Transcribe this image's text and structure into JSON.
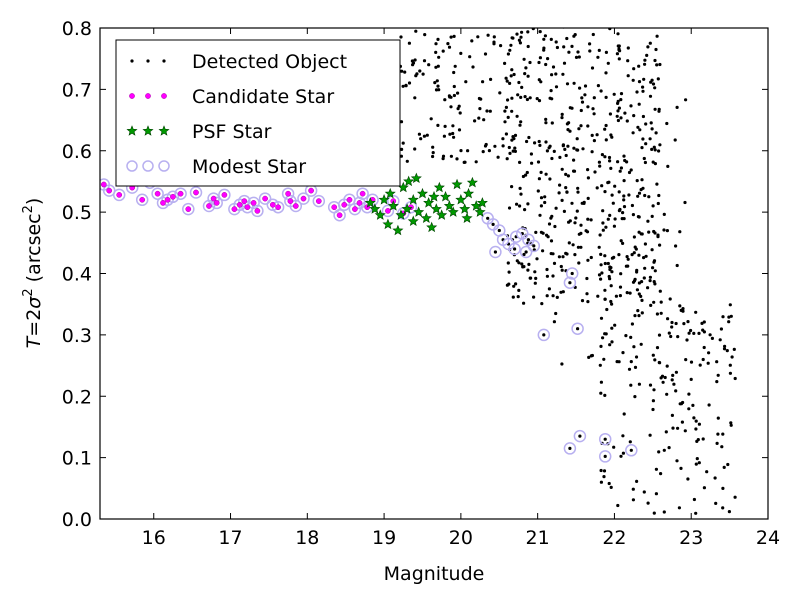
{
  "chart_data": {
    "type": "scatter",
    "title": "",
    "xlabel": "Magnitude",
    "ylabel": "T = 2σ² (arcsec²)",
    "xlim": [
      15.3,
      24
    ],
    "ylim": [
      0.0,
      0.8
    ],
    "x_ticks": [
      "16",
      "17",
      "18",
      "19",
      "20",
      "21",
      "22",
      "23",
      "24"
    ],
    "y_ticks": [
      "0.0",
      "0.1",
      "0.2",
      "0.3",
      "0.4",
      "0.5",
      "0.6",
      "0.7",
      "0.8"
    ],
    "grid": false,
    "legend_position": "top-left",
    "legend": [
      {
        "label": "Detected Object",
        "marker": "dot",
        "color": "#000000"
      },
      {
        "label": "Candidate Star",
        "marker": "small-circle",
        "color": "#ff00ff"
      },
      {
        "label": "PSF Star",
        "marker": "star",
        "color": "#008000"
      },
      {
        "label": "Modest Star",
        "marker": "open-circle",
        "color": "#b8b0f0"
      }
    ],
    "series": [
      {
        "name": "Modest Star",
        "points": [
          [
            15.35,
            0.545
          ],
          [
            15.42,
            0.535
          ],
          [
            15.55,
            0.528
          ],
          [
            15.72,
            0.54
          ],
          [
            15.85,
            0.52
          ],
          [
            15.95,
            0.548
          ],
          [
            16.05,
            0.53
          ],
          [
            16.12,
            0.515
          ],
          [
            16.18,
            0.52
          ],
          [
            16.25,
            0.525
          ],
          [
            16.35,
            0.53
          ],
          [
            16.45,
            0.505
          ],
          [
            16.55,
            0.532
          ],
          [
            16.72,
            0.51
          ],
          [
            16.82,
            0.515
          ],
          [
            16.78,
            0.522
          ],
          [
            16.92,
            0.528
          ],
          [
            17.05,
            0.505
          ],
          [
            17.12,
            0.512
          ],
          [
            17.18,
            0.518
          ],
          [
            17.22,
            0.508
          ],
          [
            17.3,
            0.515
          ],
          [
            17.35,
            0.502
          ],
          [
            17.45,
            0.522
          ],
          [
            17.55,
            0.512
          ],
          [
            17.62,
            0.508
          ],
          [
            17.75,
            0.53
          ],
          [
            17.78,
            0.518
          ],
          [
            17.85,
            0.51
          ],
          [
            17.95,
            0.522
          ],
          [
            18.05,
            0.535
          ],
          [
            18.15,
            0.518
          ],
          [
            18.35,
            0.508
          ],
          [
            18.42,
            0.495
          ],
          [
            18.48,
            0.512
          ],
          [
            18.55,
            0.52
          ],
          [
            18.62,
            0.505
          ],
          [
            18.68,
            0.515
          ],
          [
            18.72,
            0.53
          ],
          [
            18.78,
            0.508
          ],
          [
            18.85,
            0.52
          ],
          [
            19.05,
            0.502
          ],
          [
            19.12,
            0.518
          ],
          [
            19.25,
            0.498
          ],
          [
            19.35,
            0.508
          ],
          [
            20.35,
            0.49
          ],
          [
            20.42,
            0.48
          ],
          [
            20.5,
            0.47
          ],
          [
            20.55,
            0.455
          ],
          [
            20.62,
            0.448
          ],
          [
            20.7,
            0.44
          ],
          [
            20.72,
            0.46
          ],
          [
            20.8,
            0.465
          ],
          [
            20.88,
            0.455
          ],
          [
            20.95,
            0.445
          ],
          [
            20.45,
            0.435
          ],
          [
            20.85,
            0.435
          ],
          [
            21.45,
            0.4
          ],
          [
            21.42,
            0.385
          ],
          [
            21.52,
            0.31
          ],
          [
            21.08,
            0.3
          ],
          [
            21.55,
            0.135
          ],
          [
            21.42,
            0.115
          ],
          [
            21.88,
            0.13
          ],
          [
            21.88,
            0.102
          ],
          [
            22.22,
            0.112
          ]
        ]
      },
      {
        "name": "Candidate Star",
        "points": [
          [
            15.35,
            0.545
          ],
          [
            15.42,
            0.535
          ],
          [
            15.55,
            0.528
          ],
          [
            15.72,
            0.54
          ],
          [
            15.85,
            0.52
          ],
          [
            15.95,
            0.548
          ],
          [
            16.05,
            0.53
          ],
          [
            16.12,
            0.515
          ],
          [
            16.18,
            0.52
          ],
          [
            16.25,
            0.525
          ],
          [
            16.35,
            0.53
          ],
          [
            16.45,
            0.505
          ],
          [
            16.55,
            0.532
          ],
          [
            16.72,
            0.51
          ],
          [
            16.82,
            0.515
          ],
          [
            16.78,
            0.522
          ],
          [
            16.92,
            0.528
          ],
          [
            17.05,
            0.505
          ],
          [
            17.12,
            0.512
          ],
          [
            17.18,
            0.518
          ],
          [
            17.22,
            0.508
          ],
          [
            17.3,
            0.515
          ],
          [
            17.35,
            0.502
          ],
          [
            17.45,
            0.522
          ],
          [
            17.55,
            0.512
          ],
          [
            17.62,
            0.508
          ],
          [
            17.75,
            0.53
          ],
          [
            17.78,
            0.518
          ],
          [
            17.85,
            0.51
          ],
          [
            17.95,
            0.522
          ],
          [
            18.05,
            0.535
          ],
          [
            18.15,
            0.518
          ],
          [
            18.35,
            0.508
          ],
          [
            18.42,
            0.495
          ],
          [
            18.48,
            0.512
          ],
          [
            18.55,
            0.52
          ],
          [
            18.62,
            0.505
          ],
          [
            18.68,
            0.515
          ],
          [
            18.72,
            0.53
          ],
          [
            18.78,
            0.508
          ],
          [
            18.85,
            0.52
          ],
          [
            19.05,
            0.502
          ],
          [
            19.12,
            0.518
          ],
          [
            19.25,
            0.498
          ],
          [
            19.35,
            0.508
          ]
        ]
      },
      {
        "name": "PSF Star",
        "points": [
          [
            18.82,
            0.515
          ],
          [
            18.88,
            0.505
          ],
          [
            18.95,
            0.495
          ],
          [
            19.0,
            0.52
          ],
          [
            19.05,
            0.48
          ],
          [
            19.08,
            0.53
          ],
          [
            19.12,
            0.51
          ],
          [
            19.18,
            0.47
          ],
          [
            19.22,
            0.495
          ],
          [
            19.25,
            0.54
          ],
          [
            19.3,
            0.505
          ],
          [
            19.32,
            0.55
          ],
          [
            19.38,
            0.52
          ],
          [
            19.42,
            0.555
          ],
          [
            19.45,
            0.5
          ],
          [
            19.5,
            0.53
          ],
          [
            19.55,
            0.49
          ],
          [
            19.58,
            0.515
          ],
          [
            19.62,
            0.475
          ],
          [
            19.68,
            0.505
          ],
          [
            19.72,
            0.54
          ],
          [
            19.75,
            0.495
          ],
          [
            19.8,
            0.525
          ],
          [
            19.85,
            0.51
          ],
          [
            19.9,
            0.5
          ],
          [
            19.95,
            0.545
          ],
          [
            20.0,
            0.52
          ],
          [
            20.05,
            0.505
          ],
          [
            20.1,
            0.53
          ],
          [
            20.15,
            0.548
          ],
          [
            20.2,
            0.51
          ],
          [
            20.25,
            0.5
          ],
          [
            20.28,
            0.515
          ],
          [
            19.65,
            0.525
          ],
          [
            19.38,
            0.485
          ],
          [
            20.08,
            0.49
          ]
        ]
      }
    ],
    "detected_object_points_note": "",
    "detected_object_count": 900
  }
}
